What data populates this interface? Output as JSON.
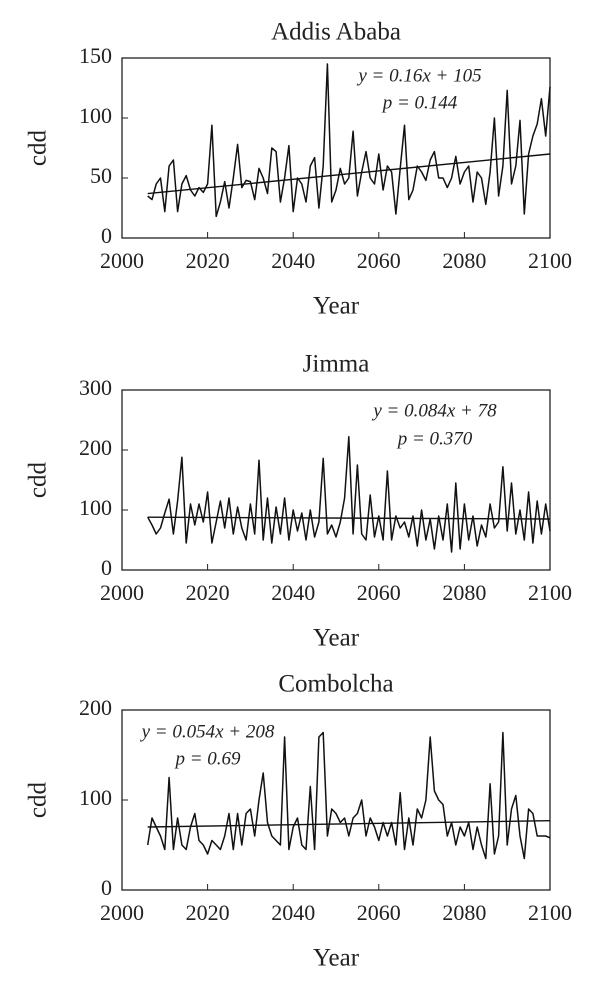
{
  "chart_data": [
    {
      "type": "line",
      "title": "Addis Ababa",
      "xlabel": "Year",
      "ylabel": "cdd",
      "color": "#111111",
      "annotations": [
        "y = 0.16x + 105",
        "p = 0.144"
      ],
      "x": [
        2006,
        2007,
        2008,
        2009,
        2010,
        2011,
        2012,
        2013,
        2014,
        2015,
        2016,
        2017,
        2018,
        2019,
        2020,
        2021,
        2022,
        2023,
        2024,
        2025,
        2026,
        2027,
        2028,
        2029,
        2030,
        2031,
        2032,
        2033,
        2034,
        2035,
        2036,
        2037,
        2038,
        2039,
        2040,
        2041,
        2042,
        2043,
        2044,
        2045,
        2046,
        2047,
        2048,
        2049,
        2050,
        2051,
        2052,
        2053,
        2054,
        2055,
        2056,
        2057,
        2058,
        2059,
        2060,
        2061,
        2062,
        2063,
        2064,
        2065,
        2066,
        2067,
        2068,
        2069,
        2070,
        2071,
        2072,
        2073,
        2074,
        2075,
        2076,
        2077,
        2078,
        2079,
        2080,
        2081,
        2082,
        2083,
        2084,
        2085,
        2086,
        2087,
        2088,
        2089,
        2090,
        2091,
        2092,
        2093,
        2094,
        2095,
        2096,
        2097,
        2098,
        2099,
        2100
      ],
      "values": [
        35,
        32,
        45,
        50,
        22,
        60,
        65,
        22,
        45,
        52,
        40,
        35,
        42,
        38,
        45,
        94,
        18,
        30,
        47,
        25,
        50,
        78,
        42,
        48,
        47,
        32,
        58,
        50,
        37,
        75,
        72,
        30,
        50,
        77,
        22,
        50,
        45,
        30,
        60,
        67,
        25,
        60,
        145,
        30,
        40,
        58,
        45,
        50,
        89,
        35,
        55,
        72,
        50,
        45,
        70,
        40,
        60,
        55,
        20,
        58,
        94,
        32,
        40,
        60,
        55,
        48,
        65,
        72,
        50,
        50,
        42,
        50,
        68,
        45,
        55,
        60,
        30,
        55,
        50,
        28,
        55,
        100,
        35,
        60,
        123,
        45,
        60,
        98,
        20,
        70,
        85,
        95,
        116,
        85,
        126
      ],
      "trend": {
        "x": [
          2006,
          2100
        ],
        "values": [
          37,
          70
        ]
      },
      "xlim": [
        2000,
        2100
      ],
      "xticks": [
        2000,
        2020,
        2040,
        2060,
        2080,
        2100
      ],
      "ylim": [
        0,
        150
      ],
      "yticks": [
        0,
        50,
        100,
        150
      ]
    },
    {
      "type": "line",
      "title": "Jimma",
      "xlabel": "Year",
      "ylabel": "cdd",
      "color": "#111111",
      "annotations": [
        "y = 0.084x + 78",
        "p = 0.370"
      ],
      "x": [
        2006,
        2007,
        2008,
        2009,
        2010,
        2011,
        2012,
        2013,
        2014,
        2015,
        2016,
        2017,
        2018,
        2019,
        2020,
        2021,
        2022,
        2023,
        2024,
        2025,
        2026,
        2027,
        2028,
        2029,
        2030,
        2031,
        2032,
        2033,
        2034,
        2035,
        2036,
        2037,
        2038,
        2039,
        2040,
        2041,
        2042,
        2043,
        2044,
        2045,
        2046,
        2047,
        2048,
        2049,
        2050,
        2051,
        2052,
        2053,
        2054,
        2055,
        2056,
        2057,
        2058,
        2059,
        2060,
        2061,
        2062,
        2063,
        2064,
        2065,
        2066,
        2067,
        2068,
        2069,
        2070,
        2071,
        2072,
        2073,
        2074,
        2075,
        2076,
        2077,
        2078,
        2079,
        2080,
        2081,
        2082,
        2083,
        2084,
        2085,
        2086,
        2087,
        2088,
        2089,
        2090,
        2091,
        2092,
        2093,
        2094,
        2095,
        2096,
        2097,
        2098,
        2099,
        2100
      ],
      "values": [
        88,
        75,
        60,
        70,
        95,
        118,
        60,
        115,
        188,
        45,
        110,
        75,
        110,
        80,
        130,
        45,
        80,
        115,
        70,
        120,
        60,
        105,
        70,
        50,
        110,
        60,
        183,
        50,
        120,
        45,
        105,
        60,
        120,
        50,
        100,
        65,
        95,
        50,
        100,
        55,
        80,
        186,
        60,
        75,
        55,
        80,
        120,
        222,
        60,
        175,
        60,
        50,
        125,
        55,
        90,
        50,
        165,
        50,
        90,
        70,
        80,
        55,
        90,
        40,
        100,
        50,
        85,
        35,
        90,
        50,
        110,
        30,
        145,
        35,
        110,
        50,
        90,
        40,
        75,
        55,
        110,
        70,
        80,
        172,
        65,
        145,
        60,
        100,
        50,
        130,
        45,
        115,
        60,
        110,
        65
      ],
      "trend": {
        "x": [
          2006,
          2100
        ],
        "values": [
          88,
          85
        ]
      },
      "xlim": [
        2000,
        2100
      ],
      "xticks": [
        2000,
        2020,
        2040,
        2060,
        2080,
        2100
      ],
      "ylim": [
        0,
        300
      ],
      "yticks": [
        0,
        100,
        200,
        300
      ]
    },
    {
      "type": "line",
      "title": "Combolcha",
      "xlabel": "Year",
      "ylabel": "cdd",
      "color": "#111111",
      "annotations": [
        "y = 0.054x + 208",
        "p = 0.69"
      ],
      "x": [
        2006,
        2007,
        2008,
        2009,
        2010,
        2011,
        2012,
        2013,
        2014,
        2015,
        2016,
        2017,
        2018,
        2019,
        2020,
        2021,
        2022,
        2023,
        2024,
        2025,
        2026,
        2027,
        2028,
        2029,
        2030,
        2031,
        2032,
        2033,
        2034,
        2035,
        2036,
        2037,
        2038,
        2039,
        2040,
        2041,
        2042,
        2043,
        2044,
        2045,
        2046,
        2047,
        2048,
        2049,
        2050,
        2051,
        2052,
        2053,
        2054,
        2055,
        2056,
        2057,
        2058,
        2059,
        2060,
        2061,
        2062,
        2063,
        2064,
        2065,
        2066,
        2067,
        2068,
        2069,
        2070,
        2071,
        2072,
        2073,
        2074,
        2075,
        2076,
        2077,
        2078,
        2079,
        2080,
        2081,
        2082,
        2083,
        2084,
        2085,
        2086,
        2087,
        2088,
        2089,
        2090,
        2091,
        2092,
        2093,
        2094,
        2095,
        2096,
        2097,
        2098,
        2099,
        2100
      ],
      "values": [
        50,
        80,
        70,
        60,
        45,
        125,
        45,
        80,
        50,
        45,
        70,
        85,
        55,
        50,
        40,
        55,
        50,
        45,
        60,
        85,
        45,
        85,
        50,
        85,
        90,
        60,
        100,
        130,
        75,
        60,
        55,
        50,
        170,
        45,
        70,
        80,
        50,
        45,
        115,
        45,
        170,
        175,
        60,
        90,
        85,
        75,
        80,
        60,
        80,
        85,
        100,
        60,
        80,
        70,
        55,
        75,
        60,
        75,
        50,
        108,
        45,
        80,
        50,
        90,
        80,
        100,
        170,
        110,
        100,
        95,
        60,
        75,
        50,
        70,
        60,
        75,
        45,
        70,
        50,
        35,
        118,
        40,
        60,
        175,
        50,
        90,
        105,
        60,
        35,
        90,
        85,
        60,
        60,
        60,
        58
      ],
      "trend": {
        "x": [
          2006,
          2100
        ],
        "values": [
          70,
          77
        ]
      },
      "xlim": [
        2000,
        2100
      ],
      "xticks": [
        2000,
        2020,
        2040,
        2060,
        2080,
        2100
      ],
      "ylim": [
        0,
        200
      ],
      "yticks": [
        0,
        100,
        200
      ]
    }
  ]
}
